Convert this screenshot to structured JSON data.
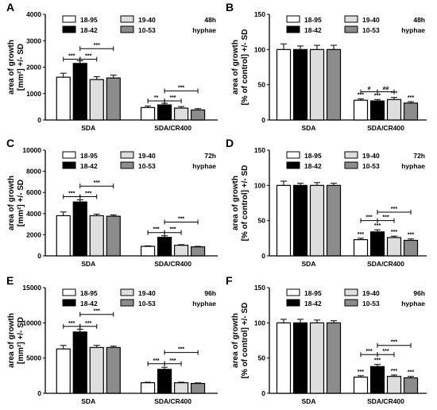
{
  "legend_entries": [
    "18-95",
    "18-42",
    "19-40",
    "10-53"
  ],
  "colors": {
    "18-95": "#ffffff",
    "18-42": "#000000",
    "19-40": "#dedede",
    "10-53": "#8c8c8c",
    "stroke": "#000000"
  },
  "chart_data": [
    {
      "panel": "A",
      "type": "bar",
      "annotation": [
        "48h",
        "hyphae"
      ],
      "ylabel": [
        "area of growth",
        "[mm²] +/- SD"
      ],
      "ylim": [
        0,
        4000
      ],
      "yticks": [
        0,
        1000,
        2000,
        3000,
        4000
      ],
      "categories": [
        "SDA",
        "SDA/CR400"
      ],
      "series": [
        {
          "name": "18-95",
          "values": [
            1620,
            470
          ],
          "sd": [
            150,
            60
          ]
        },
        {
          "name": "18-42",
          "values": [
            2140,
            570
          ],
          "sd": [
            100,
            60
          ]
        },
        {
          "name": "19-40",
          "values": [
            1530,
            450
          ],
          "sd": [
            110,
            60
          ]
        },
        {
          "name": "10-53",
          "values": [
            1590,
            380
          ],
          "sd": [
            110,
            50
          ]
        }
      ],
      "star_labels": [],
      "sig_brackets": [
        {
          "group": 0,
          "from": 0,
          "to": 1,
          "label": "***",
          "y": 2300
        },
        {
          "group": 0,
          "from": 1,
          "to": 2,
          "label": "***",
          "y": 2300
        },
        {
          "group": 0,
          "from": 1,
          "to": 3,
          "label": "***",
          "y": 2700
        },
        {
          "group": 1,
          "from": 0,
          "to": 1,
          "label": "**",
          "y": 720
        },
        {
          "group": 1,
          "from": 1,
          "to": 2,
          "label": "***",
          "y": 720
        },
        {
          "group": 1,
          "from": 1,
          "to": 3,
          "label": "***",
          "y": 1100
        }
      ]
    },
    {
      "panel": "B",
      "type": "bar",
      "annotation": [
        "48h",
        "hyphae"
      ],
      "ylabel": [
        "area of growth",
        "[% of control] +/- SD"
      ],
      "ylim": [
        0,
        150
      ],
      "yticks": [
        0,
        50,
        100,
        150
      ],
      "categories": [
        "SDA",
        "SDA/CR400"
      ],
      "series": [
        {
          "name": "18-95",
          "values": [
            100,
            28
          ],
          "sd": [
            8,
            2
          ]
        },
        {
          "name": "18-42",
          "values": [
            100,
            27
          ],
          "sd": [
            5,
            2
          ]
        },
        {
          "name": "19-40",
          "values": [
            100,
            29
          ],
          "sd": [
            6,
            3
          ]
        },
        {
          "name": "10-53",
          "values": [
            100,
            24
          ],
          "sd": [
            6,
            2
          ]
        }
      ],
      "star_labels": [
        "***",
        "***",
        "***",
        "***"
      ],
      "sig_brackets": [
        {
          "group": 1,
          "from": 0,
          "to": 1,
          "label": "#",
          "y": 40
        },
        {
          "group": 1,
          "from": 1,
          "to": 2,
          "label": "##",
          "y": 40
        }
      ]
    },
    {
      "panel": "C",
      "type": "bar",
      "annotation": [
        "72h",
        "hyphae"
      ],
      "ylabel": [
        "area of growth",
        "[mm²] +/- SD"
      ],
      "ylim": [
        0,
        10000
      ],
      "yticks": [
        0,
        2000,
        4000,
        6000,
        8000,
        10000
      ],
      "categories": [
        "SDA",
        "SDA/CR400"
      ],
      "series": [
        {
          "name": "18-95",
          "values": [
            3800,
            900
          ],
          "sd": [
            350,
            50
          ]
        },
        {
          "name": "18-42",
          "values": [
            5100,
            1750
          ],
          "sd": [
            200,
            150
          ]
        },
        {
          "name": "19-40",
          "values": [
            3800,
            1000
          ],
          "sd": [
            150,
            60
          ]
        },
        {
          "name": "10-53",
          "values": [
            3750,
            850
          ],
          "sd": [
            120,
            50
          ]
        }
      ],
      "star_labels": [],
      "sig_brackets": [
        {
          "group": 0,
          "from": 0,
          "to": 1,
          "label": "***",
          "y": 5600
        },
        {
          "group": 0,
          "from": 1,
          "to": 2,
          "label": "***",
          "y": 5600
        },
        {
          "group": 0,
          "from": 1,
          "to": 3,
          "label": "***",
          "y": 6600
        },
        {
          "group": 1,
          "from": 0,
          "to": 1,
          "label": "***",
          "y": 2200
        },
        {
          "group": 1,
          "from": 1,
          "to": 2,
          "label": "***",
          "y": 2200
        },
        {
          "group": 1,
          "from": 1,
          "to": 3,
          "label": "***",
          "y": 3200
        }
      ]
    },
    {
      "panel": "D",
      "type": "bar",
      "annotation": [
        "72h",
        "hyphae"
      ],
      "ylabel": [
        "area of growth",
        "[% of control] +/- SD"
      ],
      "ylim": [
        0,
        150
      ],
      "yticks": [
        0,
        50,
        100,
        150
      ],
      "categories": [
        "SDA",
        "SDA/CR400"
      ],
      "series": [
        {
          "name": "18-95",
          "values": [
            100,
            23
          ],
          "sd": [
            6,
            2
          ]
        },
        {
          "name": "18-42",
          "values": [
            100,
            34
          ],
          "sd": [
            3,
            3
          ]
        },
        {
          "name": "19-40",
          "values": [
            100,
            26
          ],
          "sd": [
            4,
            2
          ]
        },
        {
          "name": "10-53",
          "values": [
            100,
            22
          ],
          "sd": [
            3,
            2
          ]
        }
      ],
      "star_labels": [
        "***",
        "***",
        "***",
        "***"
      ],
      "sig_brackets": [
        {
          "group": 1,
          "from": 0,
          "to": 1,
          "label": "***",
          "y": 50
        },
        {
          "group": 1,
          "from": 1,
          "to": 2,
          "label": "***",
          "y": 50
        },
        {
          "group": 1,
          "from": 1,
          "to": 3,
          "label": "***",
          "y": 62
        }
      ]
    },
    {
      "panel": "E",
      "type": "bar",
      "annotation": [
        "96h",
        "hyphae"
      ],
      "ylabel": [
        "area of growth",
        "[mm²] +/- SD"
      ],
      "ylim": [
        0,
        15000
      ],
      "yticks": [
        0,
        5000,
        10000,
        15000
      ],
      "categories": [
        "SDA",
        "SDA/CR400"
      ],
      "series": [
        {
          "name": "18-95",
          "values": [
            6300,
            1500
          ],
          "sd": [
            500,
            80
          ]
        },
        {
          "name": "18-42",
          "values": [
            8700,
            3400
          ],
          "sd": [
            400,
            300
          ]
        },
        {
          "name": "19-40",
          "values": [
            6500,
            1500
          ],
          "sd": [
            300,
            80
          ]
        },
        {
          "name": "10-53",
          "values": [
            6500,
            1400
          ],
          "sd": [
            200,
            80
          ]
        }
      ],
      "star_labels": [],
      "sig_brackets": [
        {
          "group": 0,
          "from": 0,
          "to": 1,
          "label": "***",
          "y": 9500
        },
        {
          "group": 0,
          "from": 1,
          "to": 2,
          "label": "***",
          "y": 9500
        },
        {
          "group": 0,
          "from": 1,
          "to": 3,
          "label": "***",
          "y": 11200
        },
        {
          "group": 1,
          "from": 0,
          "to": 1,
          "label": "***",
          "y": 4200
        },
        {
          "group": 1,
          "from": 1,
          "to": 2,
          "label": "***",
          "y": 4200
        },
        {
          "group": 1,
          "from": 1,
          "to": 3,
          "label": "***",
          "y": 5800
        }
      ]
    },
    {
      "panel": "F",
      "type": "bar",
      "annotation": [
        "96h",
        "hyphae"
      ],
      "ylabel": [
        "area of growth",
        "[% of control] +/- SD"
      ],
      "ylim": [
        0,
        150
      ],
      "yticks": [
        0,
        50,
        100,
        150
      ],
      "categories": [
        "SDA",
        "SDA/CR400"
      ],
      "series": [
        {
          "name": "18-95",
          "values": [
            100,
            23
          ],
          "sd": [
            5,
            2
          ]
        },
        {
          "name": "18-42",
          "values": [
            100,
            38
          ],
          "sd": [
            5,
            3
          ]
        },
        {
          "name": "19-40",
          "values": [
            100,
            24
          ],
          "sd": [
            4,
            2
          ]
        },
        {
          "name": "10-53",
          "values": [
            100,
            22
          ],
          "sd": [
            3,
            2
          ]
        }
      ],
      "star_labels": [
        "***",
        "***",
        "***",
        "***"
      ],
      "sig_brackets": [
        {
          "group": 1,
          "from": 0,
          "to": 1,
          "label": "***",
          "y": 55
        },
        {
          "group": 1,
          "from": 1,
          "to": 2,
          "label": "***",
          "y": 55
        },
        {
          "group": 1,
          "from": 1,
          "to": 3,
          "label": "***",
          "y": 68
        }
      ]
    }
  ]
}
